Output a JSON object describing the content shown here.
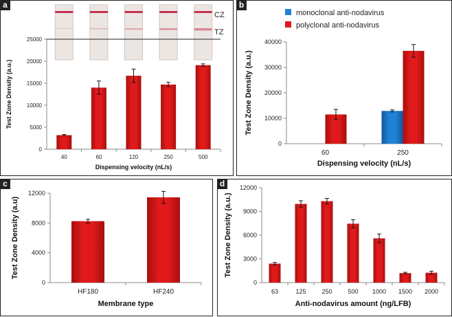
{
  "colors": {
    "red": "#e01a1a",
    "red_dark": "#a80f0f",
    "blue": "#1f82d6",
    "blue_dark": "#1259a0",
    "border": "#222222"
  },
  "strip_labels": {
    "cz": "CZ",
    "tz": "TZ"
  },
  "chart_data": [
    {
      "panel": "a",
      "type": "bar",
      "title": "",
      "xlabel": "Dispensing velocity (nL/s)",
      "ylabel": "Test Zone Density (a.u.)",
      "categories": [
        "40",
        "60",
        "120",
        "250",
        "500"
      ],
      "values": [
        3200,
        14000,
        16700,
        14700,
        19100
      ],
      "errors": [
        150,
        1500,
        1500,
        500,
        300
      ],
      "ylim": [
        0,
        25000
      ],
      "yticks": [
        "0",
        "5000",
        "10000",
        "15000",
        "20000",
        "25000"
      ]
    },
    {
      "panel": "b",
      "type": "bar",
      "xlabel": "Dispensing velocity (nL/s)",
      "ylabel": "Test Zone Density (a.u.)",
      "categories": [
        "60",
        "250"
      ],
      "series": [
        {
          "name": "monoclonal anti-nodavirus",
          "values": [
            null,
            12900
          ],
          "errors": [
            null,
            400
          ]
        },
        {
          "name": "polyclonal anti-nodavirus",
          "values": [
            11500,
            36500
          ],
          "errors": [
            2000,
            2500
          ]
        }
      ],
      "legend": "top-left",
      "ylim": [
        0,
        40000
      ],
      "yticks": [
        "0",
        "10000",
        "20000",
        "30000",
        "40000"
      ]
    },
    {
      "panel": "c",
      "type": "bar",
      "xlabel": "Membrane type",
      "ylabel": "Test Zone Density (a.u)",
      "categories": [
        "HF180",
        "HF240"
      ],
      "values": [
        8250,
        11450
      ],
      "errors": [
        250,
        800
      ],
      "ylim": [
        0,
        12000
      ],
      "yticks": [
        "0",
        "4000",
        "8000",
        "12000"
      ]
    },
    {
      "panel": "d",
      "type": "bar",
      "xlabel": "Anti-nodavirus amount (ng/LFB)",
      "ylabel": "Test Zone Density (a.u.)",
      "categories": [
        "63",
        "125",
        "250",
        "500",
        "1000",
        "1500",
        "2000"
      ],
      "values": [
        2400,
        9950,
        10300,
        7450,
        5600,
        1200,
        1250
      ],
      "errors": [
        150,
        400,
        350,
        500,
        550,
        100,
        200
      ],
      "ylim": [
        0,
        12000
      ],
      "yticks": [
        "0",
        "3000",
        "6000",
        "9000",
        "12000"
      ]
    }
  ]
}
